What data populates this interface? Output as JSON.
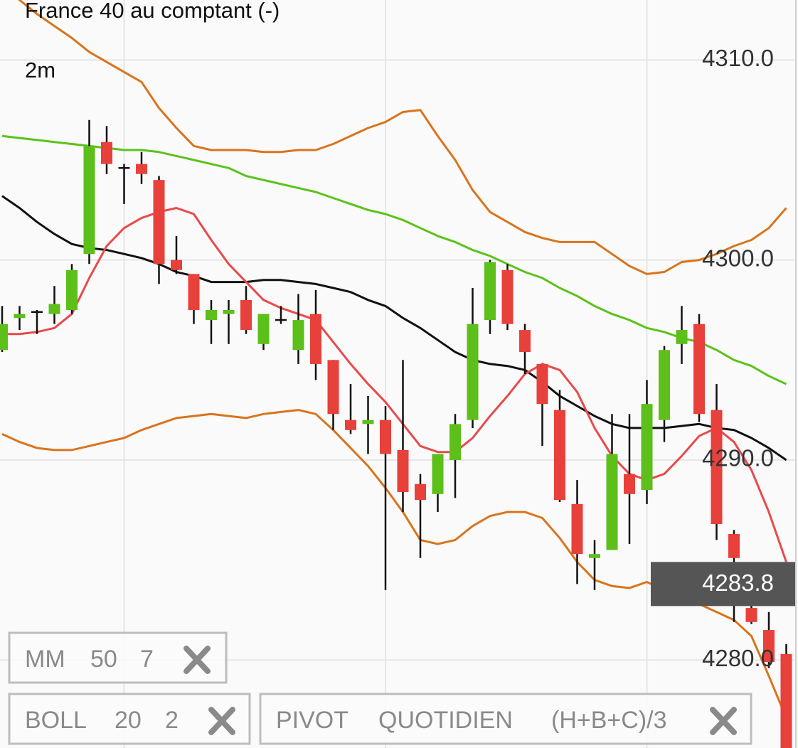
{
  "chart_data": {
    "type": "candlestick",
    "title": "France 40 au comptant (-)",
    "timeframe": "2m",
    "ylim": [
      4275.6,
      4313.0
    ],
    "yticks": [
      {
        "value": 4310,
        "label": "4310.0"
      },
      {
        "value": 4300,
        "label": "4300.0"
      },
      {
        "value": 4290,
        "label": "4290.0"
      },
      {
        "value": 4280,
        "label": "4280.0"
      }
    ],
    "grid": true,
    "up_color": "#5cbf1a",
    "down_color": "#e8403a",
    "open": [
      4295.5,
      4297.1,
      4297.4,
      4297.3,
      4297.5,
      4300.3,
      4305.9,
      4304.6,
      4304.8,
      4304.0,
      4300.0,
      4299.3,
      4297.0,
      4297.3,
      4298.0,
      4295.8,
      4297.0,
      4295.5,
      4297.3,
      4295.0,
      4292.0,
      4291.8,
      4292.0,
      4290.5,
      4288.8,
      4288.3,
      4290.0,
      4292.0,
      4297.0,
      4299.5,
      4296.5,
      4294.8,
      4292.5,
      4287.8,
      4285.1,
      4285.5,
      4289.3,
      4288.5,
      4292.0,
      4295.8,
      4296.8,
      4292.5,
      4286.3,
      4282.6,
      4281.5,
      4280.3
    ],
    "high": [
      4297.7,
      4297.7,
      4297.5,
      4298.7,
      4299.8,
      4307.0,
      4306.7,
      4304.8,
      4305.4,
      4304.2,
      4301.2,
      4299.3,
      4298.0,
      4298.0,
      4298.7,
      4297.3,
      4297.7,
      4298.3,
      4298.5,
      4295.0,
      4293.8,
      4293.2,
      4292.7,
      4295.0,
      4289.3,
      4290.3,
      4292.3,
      4298.6,
      4300.0,
      4299.8,
      4296.8,
      4294.8,
      4293.5,
      4289.0,
      4286.0,
      4292.3,
      4292.3,
      4294.0,
      4295.7,
      4297.7,
      4297.3,
      4293.8,
      4286.5,
      4283.3,
      4282.4,
      4280.8
    ],
    "low": [
      4295.4,
      4296.5,
      4296.3,
      4296.8,
      4297.3,
      4299.8,
      4304.3,
      4302.8,
      4303.8,
      4298.8,
      4299.3,
      4296.8,
      4295.8,
      4295.8,
      4296.3,
      4295.5,
      4296.8,
      4294.8,
      4294.0,
      4291.5,
      4291.3,
      4290.3,
      4283.5,
      4287.4,
      4285.1,
      4287.4,
      4288.1,
      4291.6,
      4296.3,
      4296.5,
      4294.3,
      4290.7,
      4287.9,
      4283.8,
      4283.5,
      4285.5,
      4285.8,
      4287.8,
      4290.9,
      4294.8,
      4291.9,
      4286.0,
      4281.9,
      4281.8,
      4279.6,
      4275.6
    ],
    "close": [
      4296.8,
      4297.3,
      4297.4,
      4297.8,
      4299.5,
      4305.7,
      4304.8,
      4304.6,
      4304.3,
      4299.8,
      4299.5,
      4297.5,
      4297.5,
      4297.5,
      4296.5,
      4297.3,
      4297.0,
      4297.0,
      4294.8,
      4292.3,
      4291.5,
      4292.0,
      4290.3,
      4288.4,
      4288.0,
      4290.3,
      4291.8,
      4296.8,
      4299.9,
      4296.8,
      4295.4,
      4292.8,
      4288.0,
      4285.3,
      4285.3,
      4290.3,
      4288.3,
      4292.8,
      4295.5,
      4296.5,
      4292.3,
      4286.8,
      4285.1,
      4281.9,
      4279.9,
      4275.6
    ],
    "series": [
      {
        "color": "#d9741c",
        "values": [
          4313.7,
          4313.0,
          4312.3,
          4311.7,
          4311.1,
          4310.4,
          4309.9,
          4309.4,
          4308.9,
          4307.6,
          4306.6,
          4305.7,
          4305.5,
          4305.5,
          4305.5,
          4305.4,
          4305.4,
          4305.5,
          4305.5,
          4305.8,
          4306.2,
          4306.6,
          4306.9,
          4307.4,
          4307.5,
          4306.2,
          4305.0,
          4303.5,
          4302.4,
          4301.9,
          4301.4,
          4301.1,
          4300.9,
          4300.9,
          4300.9,
          4300.3,
          4299.7,
          4299.3,
          4299.4,
          4299.9,
          4300.0,
          4300.3,
          4300.7,
          4301.0,
          4301.6,
          4302.6
        ]
      },
      {
        "color": "#d9741c",
        "values": [
          4291.3,
          4290.9,
          4290.6,
          4290.5,
          4290.5,
          4290.7,
          4290.9,
          4291.1,
          4291.5,
          4291.8,
          4292.1,
          4292.2,
          4292.3,
          4292.2,
          4292.1,
          4292.3,
          4292.4,
          4292.5,
          4292.3,
          4291.5,
          4290.6,
          4289.7,
          4288.6,
          4287.4,
          4286.0,
          4285.8,
          4286.0,
          4286.7,
          4287.2,
          4287.4,
          4287.4,
          4287.1,
          4286.1,
          4284.9,
          4284.0,
          4283.7,
          4283.6,
          4283.9,
          4283.5,
          4283.1,
          4282.8,
          4282.4,
          4282.0,
          4281.2,
          4279.2,
          4277.1
        ]
      },
      {
        "color": "#111111",
        "values": [
          4303.2,
          4302.6,
          4301.9,
          4301.3,
          4300.8,
          4300.6,
          4300.5,
          4300.3,
          4300.1,
          4299.8,
          4299.4,
          4299.2,
          4298.9,
          4298.9,
          4298.9,
          4299.0,
          4299.0,
          4298.9,
          4298.8,
          4298.6,
          4298.4,
          4298.0,
          4297.7,
          4297.1,
          4296.6,
          4296.0,
          4295.4,
          4295.0,
          4294.8,
          4294.7,
          4294.5,
          4293.9,
          4293.2,
          4292.7,
          4292.2,
          4291.8,
          4291.6,
          4291.6,
          4291.6,
          4291.7,
          4291.8,
          4291.6,
          4291.5,
          4291.1,
          4290.6,
          4290.0
        ]
      },
      {
        "color": "#5cc21b",
        "values": [
          4306.2,
          4306.1,
          4306.0,
          4305.9,
          4305.8,
          4305.7,
          4305.6,
          4305.5,
          4305.5,
          4305.4,
          4305.2,
          4305.0,
          4304.8,
          4304.6,
          4304.2,
          4304.0,
          4303.8,
          4303.6,
          4303.4,
          4303.1,
          4302.8,
          4302.5,
          4302.3,
          4302.0,
          4301.6,
          4301.2,
          4300.9,
          4300.5,
          4300.2,
          4299.8,
          4299.4,
          4299.1,
          4298.6,
          4298.2,
          4297.7,
          4297.3,
          4297.0,
          4296.6,
          4296.4,
          4296.1,
          4295.9,
          4295.5,
          4295.0,
          4294.7,
          4294.2,
          4293.8
        ]
      },
      {
        "color": "#e84a4a",
        "values": [
          4296.3,
          4296.3,
          4296.4,
          4296.6,
          4297.3,
          4299.1,
          4300.7,
          4301.6,
          4302.1,
          4302.4,
          4302.6,
          4302.3,
          4301.0,
          4299.8,
          4298.9,
          4298.0,
          4297.6,
          4297.3,
          4297.0,
          4295.9,
          4294.8,
          4293.8,
          4292.9,
          4291.8,
          4290.7,
          4290.4,
          4290.4,
          4291.1,
          4292.2,
          4293.2,
          4294.3,
          4294.8,
          4294.5,
          4293.4,
          4291.6,
          4290.2,
          4289.3,
          4289.0,
          4289.3,
          4290.2,
          4291.2,
          4291.6,
          4290.9,
          4289.5,
          4287.4,
          4284.9
        ]
      }
    ],
    "last_price": 4283.8,
    "indicators": [
      {
        "name": "MM",
        "params": [
          50,
          7
        ],
        "colors": [
          "#5cbf1a",
          "#e8403a"
        ]
      },
      {
        "name": "BOLL",
        "params": [
          20,
          2
        ],
        "colors": [
          "#d9741c",
          "#d9741c"
        ]
      },
      {
        "name": "PIVOT",
        "params": [
          "QUOTIDIEN",
          "(H+B+C)/3"
        ],
        "colors": [
          "#8a8a8a",
          "#8a8a8a"
        ]
      }
    ]
  }
}
